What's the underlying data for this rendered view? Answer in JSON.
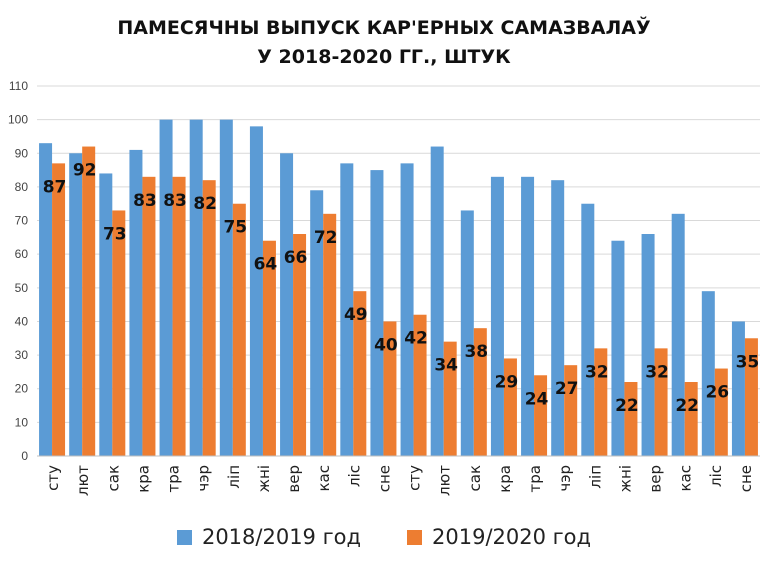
{
  "chart_data": {
    "type": "bar",
    "title_line1": "ПАМЕСЯЧНЫ ВЫПУСК КАР'ЕРНЫХ САМАЗВАЛАЎ",
    "title_line2": "У 2018-2020 ГГ., ШТУК",
    "categories": [
      "сту",
      "лют",
      "сак",
      "кра",
      "тра",
      "чэр",
      "ліп",
      "жні",
      "вер",
      "кас",
      "ліс",
      "сне",
      "сту",
      "лют",
      "сак",
      "кра",
      "тра",
      "чэр",
      "ліп",
      "жні",
      "вер",
      "кас",
      "ліс",
      "сне"
    ],
    "series": [
      {
        "name": "2018/2019 год",
        "color": "#5B9BD5",
        "values": [
          93,
          90,
          84,
          91,
          100,
          100,
          100,
          98,
          90,
          79,
          87,
          85,
          87,
          92,
          73,
          83,
          83,
          82,
          75,
          64,
          66,
          72,
          49,
          40
        ]
      },
      {
        "name": "2019/2020 год",
        "color": "#ED7D31",
        "values": [
          87,
          92,
          73,
          83,
          83,
          82,
          75,
          64,
          66,
          72,
          49,
          40,
          42,
          34,
          38,
          29,
          24,
          27,
          32,
          22,
          32,
          22,
          26,
          35
        ]
      }
    ],
    "data_labels_series": 1,
    "ylim": [
      0,
      110
    ],
    "yticks": [
      0,
      10,
      20,
      30,
      40,
      50,
      60,
      70,
      80,
      90,
      100,
      110
    ],
    "grid": true,
    "legend_position": "bottom"
  }
}
